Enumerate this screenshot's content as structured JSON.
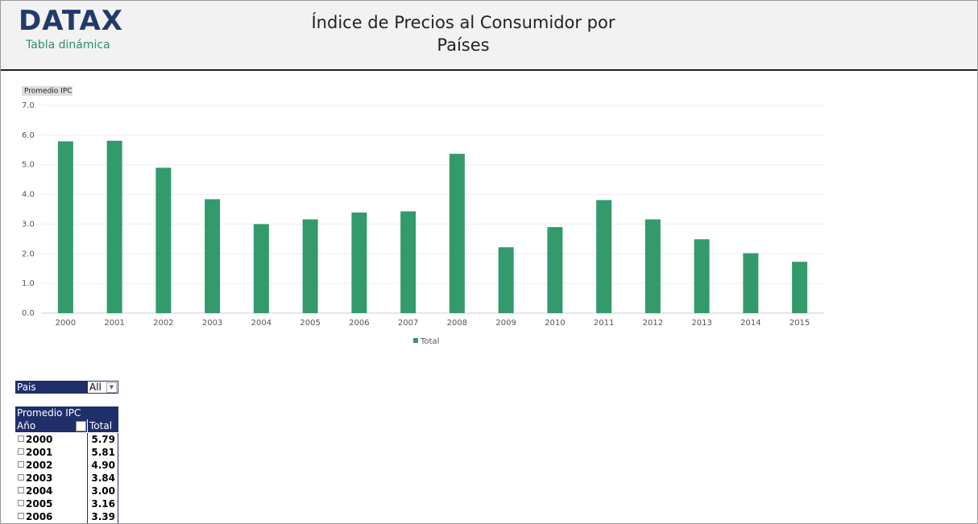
{
  "header": {
    "logo": "DATAX",
    "logo_subtitle": "Tabla dinámica",
    "title_lines": [
      "Índice de Precios al Consumidor por",
      "Países"
    ]
  },
  "chart_data": {
    "type": "bar",
    "field_button": "Promedio IPC",
    "categories": [
      "2000",
      "2001",
      "2002",
      "2003",
      "2004",
      "2005",
      "2006",
      "2007",
      "2008",
      "2009",
      "2010",
      "2011",
      "2012",
      "2013",
      "2014",
      "2015"
    ],
    "series": [
      {
        "name": "Total",
        "color": "#339a6b",
        "values": [
          5.79,
          5.81,
          4.9,
          3.84,
          3.0,
          3.16,
          3.39,
          3.43,
          5.37,
          2.22,
          2.9,
          3.81,
          3.16,
          2.49,
          2.02,
          1.73
        ]
      }
    ],
    "ylim": [
      0,
      7
    ],
    "yticks": [
      {
        "value": 0,
        "label": "0.0"
      },
      {
        "value": 1,
        "label": "1.0"
      },
      {
        "value": 2,
        "label": "2.0"
      },
      {
        "value": 3,
        "label": "3.0"
      },
      {
        "value": 4,
        "label": "4.0"
      },
      {
        "value": 5,
        "label": "5.0"
      },
      {
        "value": 6,
        "label": "6.0"
      },
      {
        "value": 7,
        "label": "7.0"
      }
    ],
    "grid": true,
    "legend": "bottom"
  },
  "filter": {
    "label": "Pais",
    "value": "All"
  },
  "pivot_table": {
    "title": "Promedio IPC",
    "columns": [
      "Año",
      "Total"
    ],
    "rows": [
      [
        "2000",
        "5.79"
      ],
      [
        "2001",
        "5.81"
      ],
      [
        "2002",
        "4.90"
      ],
      [
        "2003",
        "3.84"
      ],
      [
        "2004",
        "3.00"
      ],
      [
        "2005",
        "3.16"
      ],
      [
        "2006",
        "3.39"
      ]
    ]
  }
}
